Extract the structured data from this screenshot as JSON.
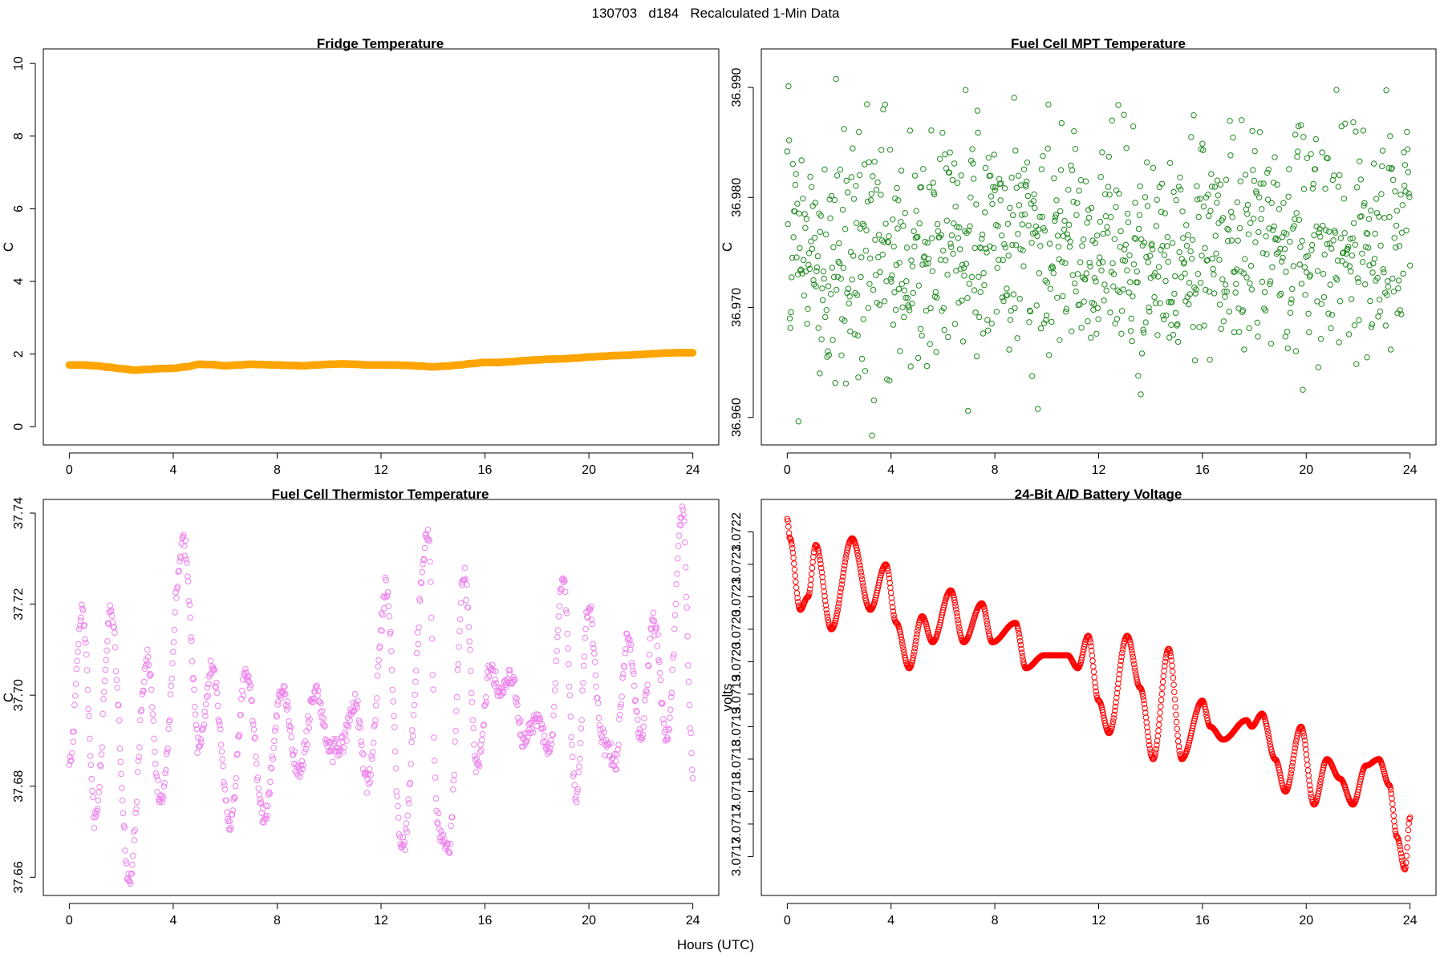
{
  "figure": {
    "title": "130703   d184   Recalculated 1-Min Data",
    "xlabel": "Hours (UTC)"
  },
  "chart_data": [
    {
      "id": "fridge",
      "type": "scatter",
      "title": "Fridge Temperature",
      "xlabel": "",
      "ylabel": "C",
      "color": "#ffa500",
      "xlim": [
        -1,
        25
      ],
      "ylim": [
        -0.5,
        10.4
      ],
      "xticks": [
        0,
        4,
        8,
        12,
        16,
        20,
        24
      ],
      "yticks": [
        0,
        2,
        4,
        6,
        8,
        10
      ],
      "ytick_labels": [
        "0",
        "2",
        "4",
        "6",
        "8",
        "10"
      ],
      "x": [
        0.0,
        0.5,
        1.0,
        1.5,
        2.0,
        2.5,
        3.0,
        3.5,
        4.0,
        4.5,
        5.0,
        5.5,
        6.0,
        6.5,
        7.0,
        7.5,
        8.0,
        8.5,
        9.0,
        9.5,
        10.0,
        10.5,
        11.0,
        11.5,
        12.0,
        12.5,
        13.0,
        13.5,
        14.0,
        14.5,
        15.0,
        15.5,
        16.0,
        16.5,
        17.0,
        17.5,
        18.0,
        18.5,
        19.0,
        19.5,
        20.0,
        20.5,
        21.0,
        21.5,
        22.0,
        22.5,
        23.0,
        23.5,
        24.0
      ],
      "values": [
        1.7,
        1.7,
        1.68,
        1.64,
        1.6,
        1.56,
        1.58,
        1.6,
        1.61,
        1.65,
        1.72,
        1.71,
        1.68,
        1.7,
        1.72,
        1.71,
        1.7,
        1.69,
        1.68,
        1.7,
        1.72,
        1.73,
        1.72,
        1.7,
        1.7,
        1.7,
        1.69,
        1.67,
        1.65,
        1.67,
        1.7,
        1.74,
        1.77,
        1.77,
        1.79,
        1.82,
        1.84,
        1.86,
        1.87,
        1.89,
        1.92,
        1.94,
        1.96,
        1.97,
        1.99,
        2.01,
        2.03,
        2.04,
        2.04
      ]
    },
    {
      "id": "mpt",
      "type": "scatter",
      "title": "Fuel Cell MPT Temperature",
      "xlabel": "",
      "ylabel": "C",
      "color": "#228b22",
      "xlim": [
        -1,
        25
      ],
      "ylim": [
        36.9575,
        36.9935
      ],
      "xticks": [
        0,
        4,
        8,
        12,
        16,
        20,
        24
      ],
      "yticks": [
        36.96,
        36.97,
        36.98,
        36.99
      ],
      "ytick_labels": [
        "36.960",
        "36.970",
        "36.980",
        "36.990"
      ],
      "distribution": {
        "mean": 36.9755,
        "sd": 0.0053,
        "points": 1000
      }
    },
    {
      "id": "thermistor",
      "type": "scatter",
      "title": "Fuel Cell Thermistor Temperature",
      "xlabel": "",
      "ylabel": "C",
      "color": "#ee82ee",
      "xlim": [
        -1,
        25
      ],
      "ylim": [
        37.656,
        37.743
      ],
      "xticks": [
        0,
        4,
        8,
        12,
        16,
        20,
        24
      ],
      "yticks": [
        37.66,
        37.68,
        37.7,
        37.72,
        37.74
      ],
      "ytick_labels": [
        "37.66",
        "37.68",
        "37.70",
        "37.72",
        "37.74"
      ],
      "x": [
        0.0,
        0.5,
        1.0,
        1.6,
        2.3,
        3.0,
        3.5,
        4.4,
        5.0,
        5.5,
        6.2,
        6.8,
        7.5,
        8.2,
        8.8,
        9.5,
        10.0,
        10.5,
        11.0,
        11.5,
        12.2,
        12.8,
        13.8,
        14.2,
        14.6,
        15.2,
        15.7,
        16.2,
        16.6,
        17.0,
        17.5,
        18.0,
        18.5,
        19.0,
        19.5,
        20.0,
        20.5,
        21.0,
        21.5,
        22.0,
        22.5,
        23.0,
        23.6,
        24.0
      ],
      "values": [
        37.685,
        37.718,
        37.673,
        37.718,
        37.659,
        37.708,
        37.676,
        37.734,
        37.689,
        37.706,
        37.672,
        37.705,
        37.673,
        37.702,
        37.683,
        37.701,
        37.688,
        37.69,
        37.698,
        37.681,
        37.723,
        37.666,
        37.735,
        37.67,
        37.666,
        37.727,
        37.684,
        37.705,
        37.701,
        37.704,
        37.69,
        37.695,
        37.688,
        37.726,
        37.678,
        37.72,
        37.69,
        37.685,
        37.712,
        37.69,
        37.717,
        37.69,
        37.741,
        37.684
      ]
    },
    {
      "id": "battery",
      "type": "scatter",
      "title": "24-Bit A/D Battery Voltage",
      "xlabel": "",
      "ylabel": "volts",
      "color": "#ff0000",
      "xlim": [
        -1,
        25
      ],
      "ylim": [
        3.07164,
        3.07225
      ],
      "xticks": [
        0,
        4,
        8,
        12,
        16,
        20,
        24
      ],
      "yticks": [
        3.0717,
        3.07175,
        3.0718,
        3.07185,
        3.0719,
        3.07195,
        3.072,
        3.07205,
        3.0721,
        3.07215,
        3.0722
      ],
      "ytick_labels": [
        "3.0717",
        "3.0717",
        "3.0718",
        "3.0718",
        "3.0719",
        "3.0719",
        "3.0720",
        "3.0720",
        "3.0721",
        "3.0721",
        "3.0722"
      ],
      "x": [
        0.0,
        0.1,
        0.5,
        0.8,
        1.1,
        1.7,
        2.5,
        3.2,
        3.8,
        4.2,
        4.7,
        5.2,
        5.6,
        6.3,
        6.8,
        7.5,
        7.9,
        8.8,
        9.2,
        9.9,
        10.4,
        10.8,
        11.2,
        11.6,
        12.0,
        12.4,
        13.1,
        13.6,
        14.1,
        14.7,
        15.2,
        16.0,
        16.3,
        16.8,
        17.7,
        17.9,
        18.3,
        18.8,
        19.2,
        19.8,
        20.3,
        20.8,
        21.3,
        21.8,
        22.3,
        22.8,
        23.2,
        23.5,
        23.8,
        24.0
      ],
      "values": [
        3.07222,
        3.07219,
        3.07208,
        3.0721,
        3.07218,
        3.07205,
        3.07219,
        3.07208,
        3.07215,
        3.07206,
        3.07199,
        3.07207,
        3.07203,
        3.07211,
        3.07203,
        3.07209,
        3.07203,
        3.07206,
        3.07199,
        3.07201,
        3.07201,
        3.07201,
        3.07199,
        3.07204,
        3.07194,
        3.07189,
        3.07204,
        3.07196,
        3.07185,
        3.07202,
        3.07185,
        3.07194,
        3.0719,
        3.07188,
        3.07191,
        3.0719,
        3.07192,
        3.07185,
        3.0718,
        3.0719,
        3.07178,
        3.07185,
        3.07182,
        3.07178,
        3.07184,
        3.07185,
        3.07181,
        3.07173,
        3.07168,
        3.07176
      ]
    }
  ]
}
